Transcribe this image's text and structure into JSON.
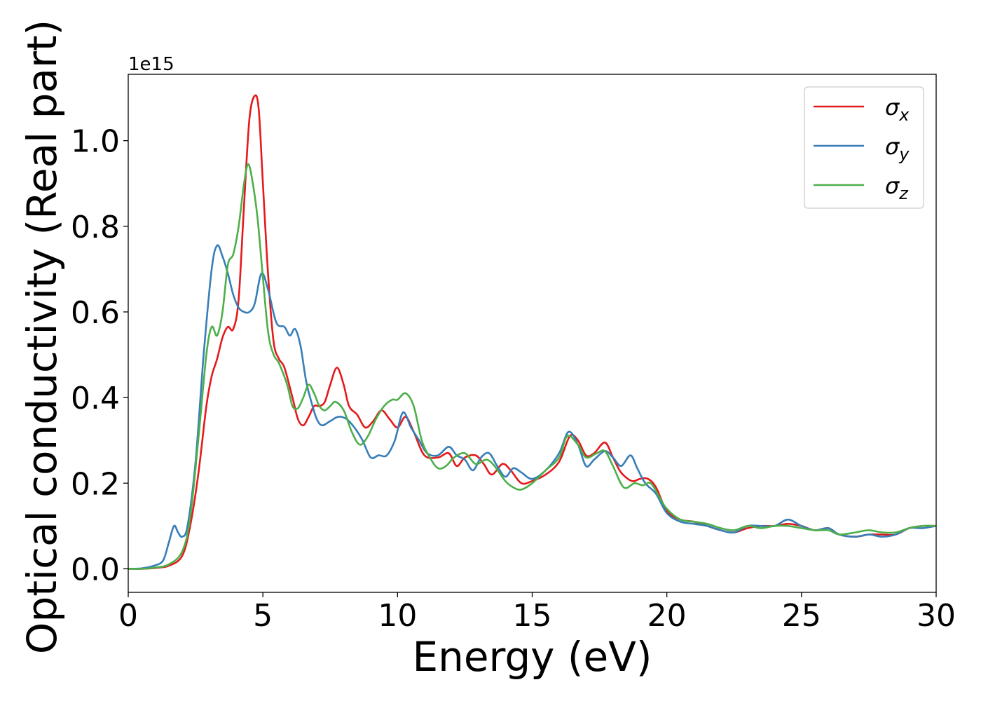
{
  "chart_data": {
    "type": "line",
    "xlabel": "Energy (eV)",
    "ylabel": "Optical conductivity (Real part)",
    "y_offset_label": "1e15",
    "xlim": [
      0,
      30
    ],
    "ylim": [
      -0.055,
      1.155
    ],
    "x_ticks": [
      0,
      5,
      10,
      15,
      20,
      25,
      30
    ],
    "x_tick_labels": [
      "0",
      "5",
      "10",
      "15",
      "20",
      "25",
      "30"
    ],
    "y_ticks": [
      0.0,
      0.2,
      0.4,
      0.6,
      0.8,
      1.0
    ],
    "y_tick_labels": [
      "0.0",
      "0.2",
      "0.4",
      "0.6",
      "0.8",
      "1.0"
    ],
    "grid": false,
    "legend_position": "top-right",
    "series": [
      {
        "name": "σx",
        "symbol": "σ",
        "subscript": "x",
        "color": "#e41a1c",
        "points": [
          [
            0,
            0
          ],
          [
            0.5,
            0
          ],
          [
            1,
            0.002
          ],
          [
            1.5,
            0.007
          ],
          [
            2,
            0.03
          ],
          [
            2.3,
            0.1
          ],
          [
            2.6,
            0.22
          ],
          [
            2.9,
            0.38
          ],
          [
            3.1,
            0.45
          ],
          [
            3.3,
            0.49
          ],
          [
            3.5,
            0.54
          ],
          [
            3.7,
            0.565
          ],
          [
            3.9,
            0.56
          ],
          [
            4.1,
            0.63
          ],
          [
            4.3,
            0.85
          ],
          [
            4.5,
            1.05
          ],
          [
            4.7,
            1.105
          ],
          [
            4.85,
            1.07
          ],
          [
            5.0,
            0.9
          ],
          [
            5.2,
            0.68
          ],
          [
            5.4,
            0.53
          ],
          [
            5.6,
            0.49
          ],
          [
            5.8,
            0.47
          ],
          [
            6.1,
            0.4
          ],
          [
            6.3,
            0.35
          ],
          [
            6.5,
            0.335
          ],
          [
            6.7,
            0.355
          ],
          [
            6.9,
            0.38
          ],
          [
            7.1,
            0.38
          ],
          [
            7.3,
            0.39
          ],
          [
            7.5,
            0.43
          ],
          [
            7.75,
            0.47
          ],
          [
            8.0,
            0.43
          ],
          [
            8.2,
            0.38
          ],
          [
            8.5,
            0.36
          ],
          [
            8.8,
            0.33
          ],
          [
            9.1,
            0.345
          ],
          [
            9.4,
            0.37
          ],
          [
            9.7,
            0.35
          ],
          [
            10.0,
            0.33
          ],
          [
            10.3,
            0.355
          ],
          [
            10.6,
            0.32
          ],
          [
            11.0,
            0.265
          ],
          [
            11.5,
            0.26
          ],
          [
            11.9,
            0.27
          ],
          [
            12.2,
            0.24
          ],
          [
            12.5,
            0.26
          ],
          [
            12.9,
            0.265
          ],
          [
            13.2,
            0.245
          ],
          [
            13.5,
            0.22
          ],
          [
            13.9,
            0.245
          ],
          [
            14.2,
            0.23
          ],
          [
            14.6,
            0.2
          ],
          [
            15.0,
            0.205
          ],
          [
            15.5,
            0.22
          ],
          [
            16.0,
            0.25
          ],
          [
            16.4,
            0.31
          ],
          [
            16.7,
            0.3
          ],
          [
            17.0,
            0.265
          ],
          [
            17.3,
            0.27
          ],
          [
            17.7,
            0.295
          ],
          [
            18.0,
            0.26
          ],
          [
            18.3,
            0.225
          ],
          [
            18.7,
            0.205
          ],
          [
            19.0,
            0.21
          ],
          [
            19.3,
            0.21
          ],
          [
            19.6,
            0.19
          ],
          [
            20.0,
            0.135
          ],
          [
            20.5,
            0.115
          ],
          [
            21.0,
            0.11
          ],
          [
            21.5,
            0.1
          ],
          [
            22.0,
            0.09
          ],
          [
            22.5,
            0.085
          ],
          [
            23.0,
            0.095
          ],
          [
            23.5,
            0.1
          ],
          [
            24.0,
            0.1
          ],
          [
            24.5,
            0.105
          ],
          [
            25.0,
            0.1
          ],
          [
            25.5,
            0.09
          ],
          [
            26.0,
            0.095
          ],
          [
            26.4,
            0.08
          ],
          [
            27.0,
            0.075
          ],
          [
            27.5,
            0.08
          ],
          [
            28.0,
            0.08
          ],
          [
            28.5,
            0.08
          ],
          [
            29.0,
            0.095
          ],
          [
            29.5,
            0.1
          ],
          [
            30.0,
            0.1
          ]
        ]
      },
      {
        "name": "σy",
        "symbol": "σ",
        "subscript": "y",
        "color": "#377eb8",
        "points": [
          [
            0,
            0
          ],
          [
            0.5,
            0.001
          ],
          [
            1,
            0.008
          ],
          [
            1.3,
            0.02
          ],
          [
            1.5,
            0.06
          ],
          [
            1.7,
            0.1
          ],
          [
            1.85,
            0.085
          ],
          [
            2.0,
            0.075
          ],
          [
            2.2,
            0.1
          ],
          [
            2.5,
            0.25
          ],
          [
            2.8,
            0.5
          ],
          [
            3.1,
            0.7
          ],
          [
            3.3,
            0.755
          ],
          [
            3.5,
            0.73
          ],
          [
            3.7,
            0.69
          ],
          [
            3.9,
            0.64
          ],
          [
            4.1,
            0.61
          ],
          [
            4.3,
            0.6
          ],
          [
            4.5,
            0.6
          ],
          [
            4.7,
            0.62
          ],
          [
            4.95,
            0.69
          ],
          [
            5.2,
            0.65
          ],
          [
            5.5,
            0.575
          ],
          [
            5.8,
            0.565
          ],
          [
            6.0,
            0.545
          ],
          [
            6.2,
            0.56
          ],
          [
            6.4,
            0.52
          ],
          [
            6.6,
            0.44
          ],
          [
            6.8,
            0.39
          ],
          [
            7.0,
            0.35
          ],
          [
            7.2,
            0.335
          ],
          [
            7.5,
            0.345
          ],
          [
            7.8,
            0.355
          ],
          [
            8.1,
            0.35
          ],
          [
            8.4,
            0.33
          ],
          [
            8.7,
            0.3
          ],
          [
            9.0,
            0.26
          ],
          [
            9.3,
            0.265
          ],
          [
            9.6,
            0.265
          ],
          [
            9.9,
            0.3
          ],
          [
            10.2,
            0.365
          ],
          [
            10.5,
            0.33
          ],
          [
            10.8,
            0.3
          ],
          [
            11.1,
            0.27
          ],
          [
            11.5,
            0.265
          ],
          [
            11.9,
            0.285
          ],
          [
            12.2,
            0.265
          ],
          [
            12.5,
            0.255
          ],
          [
            12.8,
            0.23
          ],
          [
            13.1,
            0.26
          ],
          [
            13.4,
            0.27
          ],
          [
            13.7,
            0.24
          ],
          [
            14.0,
            0.215
          ],
          [
            14.3,
            0.235
          ],
          [
            14.6,
            0.225
          ],
          [
            15.0,
            0.21
          ],
          [
            15.5,
            0.23
          ],
          [
            16.0,
            0.27
          ],
          [
            16.35,
            0.32
          ],
          [
            16.7,
            0.29
          ],
          [
            17.0,
            0.24
          ],
          [
            17.3,
            0.255
          ],
          [
            17.7,
            0.275
          ],
          [
            18.0,
            0.26
          ],
          [
            18.3,
            0.24
          ],
          [
            18.65,
            0.265
          ],
          [
            18.9,
            0.235
          ],
          [
            19.2,
            0.2
          ],
          [
            19.6,
            0.175
          ],
          [
            20.0,
            0.13
          ],
          [
            20.5,
            0.11
          ],
          [
            21.0,
            0.105
          ],
          [
            21.5,
            0.1
          ],
          [
            22.0,
            0.09
          ],
          [
            22.5,
            0.085
          ],
          [
            23.0,
            0.1
          ],
          [
            23.5,
            0.1
          ],
          [
            24.0,
            0.1
          ],
          [
            24.5,
            0.115
          ],
          [
            25.0,
            0.1
          ],
          [
            25.5,
            0.09
          ],
          [
            26.0,
            0.095
          ],
          [
            26.4,
            0.08
          ],
          [
            27.0,
            0.075
          ],
          [
            27.5,
            0.08
          ],
          [
            28.0,
            0.075
          ],
          [
            28.5,
            0.08
          ],
          [
            29.0,
            0.095
          ],
          [
            29.5,
            0.095
          ],
          [
            30.0,
            0.1
          ]
        ]
      },
      {
        "name": "σz",
        "symbol": "σ",
        "subscript": "z",
        "color": "#4daf4a",
        "points": [
          [
            0,
            0
          ],
          [
            0.5,
            0
          ],
          [
            1,
            0.003
          ],
          [
            1.5,
            0.01
          ],
          [
            2,
            0.04
          ],
          [
            2.3,
            0.12
          ],
          [
            2.6,
            0.3
          ],
          [
            2.9,
            0.5
          ],
          [
            3.1,
            0.565
          ],
          [
            3.3,
            0.545
          ],
          [
            3.5,
            0.6
          ],
          [
            3.7,
            0.71
          ],
          [
            3.9,
            0.735
          ],
          [
            4.1,
            0.8
          ],
          [
            4.3,
            0.9
          ],
          [
            4.45,
            0.945
          ],
          [
            4.6,
            0.91
          ],
          [
            4.8,
            0.82
          ],
          [
            5.0,
            0.68
          ],
          [
            5.2,
            0.55
          ],
          [
            5.4,
            0.5
          ],
          [
            5.6,
            0.48
          ],
          [
            5.9,
            0.43
          ],
          [
            6.1,
            0.38
          ],
          [
            6.3,
            0.375
          ],
          [
            6.5,
            0.4
          ],
          [
            6.7,
            0.43
          ],
          [
            6.9,
            0.41
          ],
          [
            7.1,
            0.38
          ],
          [
            7.3,
            0.37
          ],
          [
            7.5,
            0.38
          ],
          [
            7.7,
            0.39
          ],
          [
            8.0,
            0.37
          ],
          [
            8.3,
            0.32
          ],
          [
            8.6,
            0.29
          ],
          [
            8.9,
            0.31
          ],
          [
            9.2,
            0.35
          ],
          [
            9.5,
            0.38
          ],
          [
            9.8,
            0.395
          ],
          [
            10.0,
            0.395
          ],
          [
            10.3,
            0.41
          ],
          [
            10.6,
            0.38
          ],
          [
            10.9,
            0.3
          ],
          [
            11.2,
            0.26
          ],
          [
            11.5,
            0.235
          ],
          [
            11.8,
            0.24
          ],
          [
            12.1,
            0.26
          ],
          [
            12.5,
            0.27
          ],
          [
            12.9,
            0.245
          ],
          [
            13.3,
            0.255
          ],
          [
            13.6,
            0.24
          ],
          [
            14.0,
            0.205
          ],
          [
            14.3,
            0.19
          ],
          [
            14.6,
            0.185
          ],
          [
            15.0,
            0.2
          ],
          [
            15.5,
            0.23
          ],
          [
            16.0,
            0.26
          ],
          [
            16.3,
            0.31
          ],
          [
            16.7,
            0.29
          ],
          [
            17.0,
            0.26
          ],
          [
            17.4,
            0.27
          ],
          [
            17.7,
            0.275
          ],
          [
            18.0,
            0.24
          ],
          [
            18.4,
            0.19
          ],
          [
            18.8,
            0.2
          ],
          [
            19.1,
            0.195
          ],
          [
            19.4,
            0.2
          ],
          [
            19.7,
            0.17
          ],
          [
            20.0,
            0.14
          ],
          [
            20.5,
            0.115
          ],
          [
            21.0,
            0.11
          ],
          [
            21.5,
            0.105
          ],
          [
            22.0,
            0.095
          ],
          [
            22.5,
            0.09
          ],
          [
            23.0,
            0.1
          ],
          [
            23.5,
            0.095
          ],
          [
            24.0,
            0.1
          ],
          [
            24.5,
            0.1
          ],
          [
            25.0,
            0.095
          ],
          [
            25.5,
            0.09
          ],
          [
            26.0,
            0.09
          ],
          [
            26.4,
            0.08
          ],
          [
            27.0,
            0.085
          ],
          [
            27.5,
            0.09
          ],
          [
            28.0,
            0.085
          ],
          [
            28.5,
            0.085
          ],
          [
            29.0,
            0.095
          ],
          [
            29.5,
            0.1
          ],
          [
            30.0,
            0.1
          ]
        ]
      }
    ]
  }
}
